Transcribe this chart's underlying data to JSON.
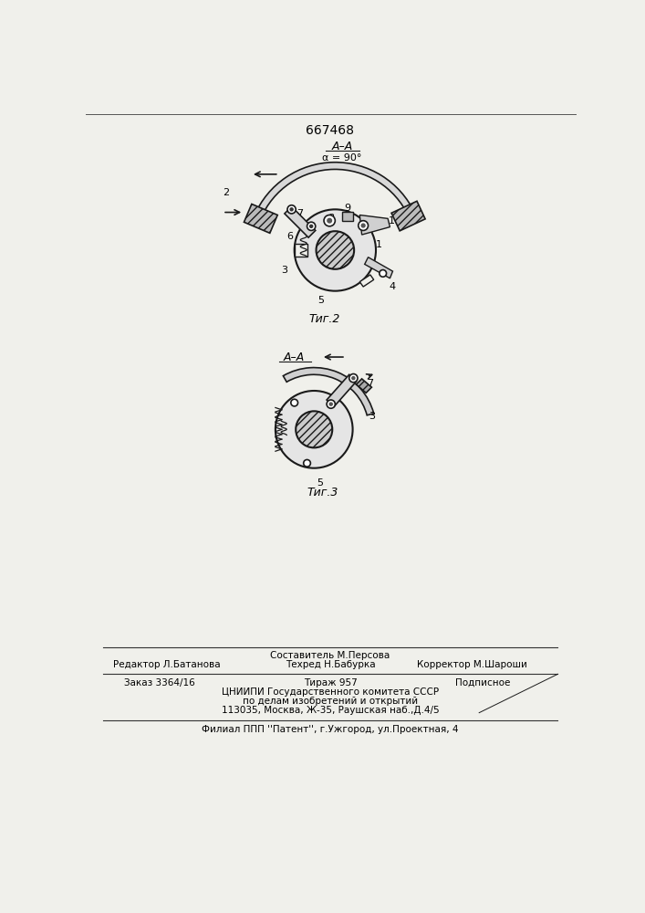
{
  "patent_number": "667468",
  "fig2_caption": "Τиг.2",
  "fig3_caption": "Τиг.3",
  "footer_line1_left": "Редактор Л.Батанова",
  "footer_line1_center": "Составитель М.Персова",
  "footer_line1_right": "Корректор М.Шароши",
  "footer_line2_center": "Техред Н.Бабурка",
  "footer_line3_left": "Заказ 3364/16",
  "footer_line3_center": "Тираж 957",
  "footer_line3_right": "Подписное",
  "footer_line4": "ЦНИИПИ Государственного комитета СССР",
  "footer_line5": "по делам изобретений и открытий",
  "footer_line6": "113035, Москва, Ж-35, Раушская наб.,Д.4/5",
  "footer_line7": "Филиал ППП ''Патент'', г.Ужгород, ул.Проектная, 4",
  "bg_color": "#f0f0eb",
  "line_color": "#1a1a1a"
}
